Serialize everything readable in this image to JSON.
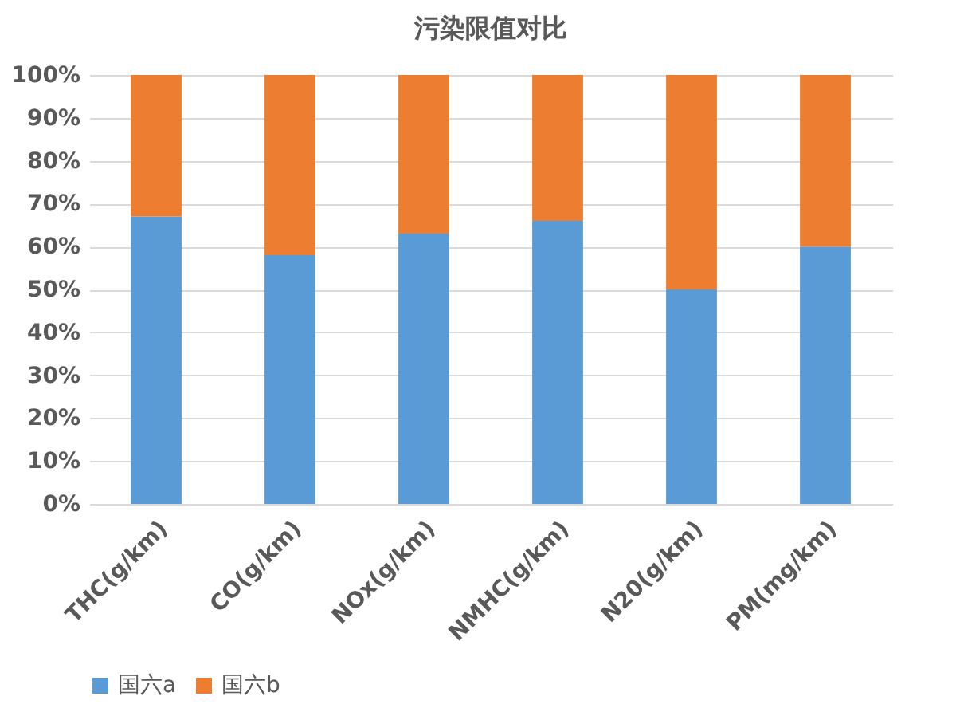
{
  "chart_data": {
    "type": "bar",
    "title": "污染限值对比",
    "stacked": true,
    "categories": [
      "THC(g/km)",
      "CO(g/km)",
      "NOx(g/km)",
      "NMHC(g/km)",
      "N20(g/km)",
      "PM(mg/km)"
    ],
    "series": [
      {
        "name": "国六a",
        "color": "#5b9bd5",
        "values": [
          67,
          58,
          63,
          66,
          50,
          60
        ]
      },
      {
        "name": "国六b",
        "color": "#ed7d31",
        "values": [
          33,
          42,
          37,
          34,
          50,
          40
        ]
      }
    ],
    "ylim": [
      0,
      100
    ],
    "yticks": [
      {
        "value": 0,
        "label": "0%"
      },
      {
        "value": 10,
        "label": "10%"
      },
      {
        "value": 20,
        "label": "20%"
      },
      {
        "value": 30,
        "label": "30%"
      },
      {
        "value": 40,
        "label": "40%"
      },
      {
        "value": 50,
        "label": "50%"
      },
      {
        "value": 60,
        "label": "60%"
      },
      {
        "value": 70,
        "label": "70%"
      },
      {
        "value": 80,
        "label": "80%"
      },
      {
        "value": 90,
        "label": "90%"
      },
      {
        "value": 100,
        "label": "100%"
      }
    ],
    "grid": "y",
    "legend": "bottom"
  }
}
